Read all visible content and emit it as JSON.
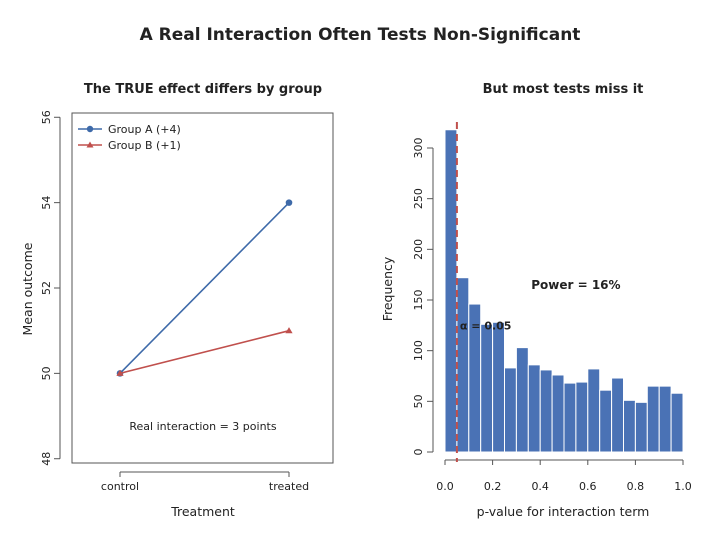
{
  "figure": {
    "suptitle": "A Real Interaction Often Tests Non-Significant"
  },
  "chart_data": [
    {
      "type": "line",
      "title": "The TRUE effect differs by group",
      "xlabel": "Treatment",
      "ylabel": "Mean outcome",
      "categories": [
        "control",
        "treated"
      ],
      "ylim": [
        48,
        56
      ],
      "yticks": [
        48,
        50,
        52,
        54,
        56
      ],
      "series": [
        {
          "name": "Group A (+4)",
          "values": [
            50,
            54
          ],
          "color": "#3e6aa9",
          "marker": "circle"
        },
        {
          "name": "Group B (+1)",
          "values": [
            50,
            51
          ],
          "color": "#c0504d",
          "marker": "triangle"
        }
      ],
      "legend": "top-left",
      "annotation": "Real interaction = 3 points",
      "grid": false
    },
    {
      "type": "bar",
      "subtype": "histogram",
      "title": "But most tests miss it",
      "xlabel": "p-value for interaction term",
      "ylabel": "Frequency",
      "xlim": [
        0,
        1
      ],
      "ylim": [
        0,
        320
      ],
      "xticks": [
        "0.0",
        "0.2",
        "0.4",
        "0.6",
        "0.8",
        "1.0"
      ],
      "yticks": [
        0,
        50,
        100,
        150,
        200,
        250,
        300
      ],
      "bin_width": 0.05,
      "bin_starts": [
        0.0,
        0.05,
        0.1,
        0.15,
        0.2,
        0.25,
        0.3,
        0.35,
        0.4,
        0.45,
        0.5,
        0.55,
        0.6,
        0.65,
        0.7,
        0.75,
        0.8,
        0.85,
        0.9,
        0.95
      ],
      "values": [
        318,
        172,
        146,
        126,
        128,
        83,
        103,
        86,
        81,
        76,
        68,
        69,
        82,
        61,
        73,
        51,
        49,
        65,
        65,
        58
      ],
      "bar_color": "#4a72b5",
      "threshold": {
        "x": 0.05,
        "label": "α = 0.05",
        "color": "#c0504d"
      },
      "power_label": "Power = 16%",
      "power_color": "#4aa64a",
      "grid": false
    }
  ]
}
